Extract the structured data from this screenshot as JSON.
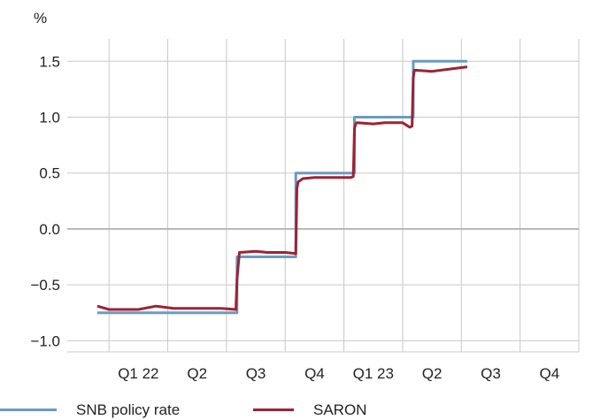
{
  "chart_data": {
    "type": "line",
    "title": "",
    "xlabel": "",
    "ylabel": "%",
    "ylim": [
      -1.1,
      1.7
    ],
    "yticks": [
      1.5,
      1.0,
      0.5,
      0.0,
      -0.5,
      -1.0
    ],
    "ytick_labels": [
      "1.5",
      "1.0",
      "0.5",
      "0.0",
      "−0.5",
      "−1.0"
    ],
    "xlim": [
      0,
      8.5
    ],
    "xticks": [
      1,
      2,
      3,
      4,
      5,
      6,
      7,
      8
    ],
    "xtick_labels": [
      "Q1 22",
      "Q2",
      "Q3",
      "Q4",
      "Q1 23",
      "Q2",
      "Q3",
      "Q4"
    ],
    "grid": true,
    "legend_position": "bottom",
    "series": [
      {
        "name": "SNB policy rate",
        "color": "#6a9bc3",
        "x": [
          0.3,
          2.68,
          2.68,
          3.68,
          3.68,
          4.68,
          4.68,
          5.68,
          5.68,
          6.6
        ],
        "y": [
          -0.75,
          -0.75,
          -0.25,
          -0.25,
          0.5,
          0.5,
          1.0,
          1.0,
          1.5,
          1.5
        ]
      },
      {
        "name": "SARON",
        "color": "#9b2335",
        "x": [
          0.3,
          0.5,
          1.0,
          1.3,
          1.6,
          2.0,
          2.4,
          2.66,
          2.68,
          2.72,
          3.0,
          3.2,
          3.5,
          3.68,
          3.7,
          3.72,
          3.8,
          4.0,
          4.3,
          4.62,
          4.66,
          4.68,
          4.7,
          4.72,
          5.0,
          5.2,
          5.5,
          5.62,
          5.66,
          5.68,
          5.7,
          5.72,
          6.0,
          6.3,
          6.6
        ],
        "y": [
          -0.69,
          -0.72,
          -0.72,
          -0.69,
          -0.71,
          -0.71,
          -0.71,
          -0.72,
          -0.45,
          -0.21,
          -0.2,
          -0.21,
          -0.21,
          -0.22,
          0.36,
          0.42,
          0.45,
          0.46,
          0.46,
          0.46,
          0.47,
          0.9,
          0.94,
          0.95,
          0.94,
          0.95,
          0.95,
          0.91,
          0.92,
          1.35,
          1.42,
          1.42,
          1.41,
          1.43,
          1.45
        ]
      }
    ]
  }
}
